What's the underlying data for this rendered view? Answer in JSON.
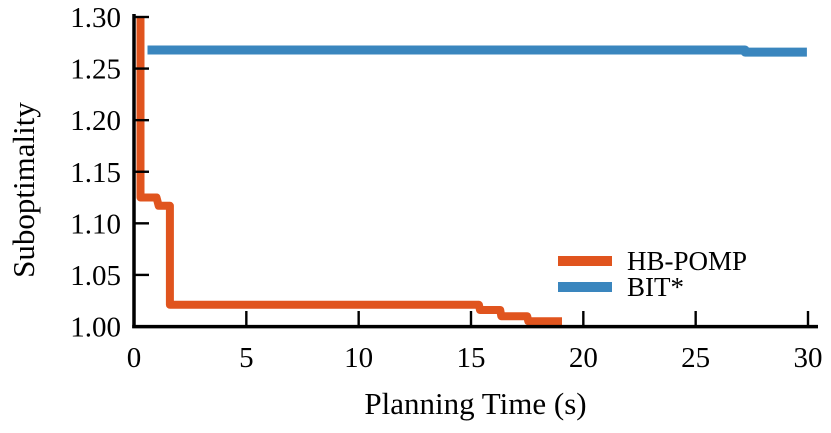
{
  "figure": {
    "background": "#ffffff",
    "axis_color": "#000000"
  },
  "chart_data": {
    "type": "line",
    "subtype": "step",
    "title": "",
    "xlabel": "Planning Time (s)",
    "ylabel": "Suboptimality",
    "xlim": [
      0,
      30
    ],
    "ylim": [
      1.0,
      1.3
    ],
    "grid": false,
    "legend_position": "lower right",
    "x_ticks": [
      0,
      5,
      10,
      15,
      20,
      25,
      30
    ],
    "x_tick_labels": [
      "0",
      "5",
      "10",
      "15",
      "20",
      "25",
      "30"
    ],
    "y_ticks": [
      1.0,
      1.05,
      1.1,
      1.15,
      1.2,
      1.25,
      1.3
    ],
    "y_tick_labels": [
      "1.00",
      "1.05",
      "1.10",
      "1.15",
      "1.20",
      "1.25",
      "1.30"
    ],
    "series": [
      {
        "name": "HB-POMP",
        "color": "#E0541E",
        "linewidth": 8,
        "points": [
          [
            0.29,
            1.32
          ],
          [
            0.29,
            1.125
          ],
          [
            1.0,
            1.125
          ],
          [
            1.1,
            1.117
          ],
          [
            1.6,
            1.117
          ],
          [
            1.6,
            1.021
          ],
          [
            15.35,
            1.021
          ],
          [
            15.4,
            1.016
          ],
          [
            16.3,
            1.016
          ],
          [
            16.35,
            1.01
          ],
          [
            17.5,
            1.01
          ],
          [
            17.55,
            1.005
          ],
          [
            19.05,
            1.005
          ]
        ]
      },
      {
        "name": "BIT*",
        "color": "#3A86BE",
        "linewidth": 9,
        "points": [
          [
            0.6,
            1.268
          ],
          [
            27.2,
            1.268
          ],
          [
            27.2,
            1.266
          ],
          [
            29.95,
            1.266
          ]
        ]
      }
    ]
  },
  "legend": {
    "items": [
      {
        "label": "HB-POMP",
        "color": "#E0541E"
      },
      {
        "label": "BIT*",
        "color": "#3A86BE"
      }
    ]
  }
}
